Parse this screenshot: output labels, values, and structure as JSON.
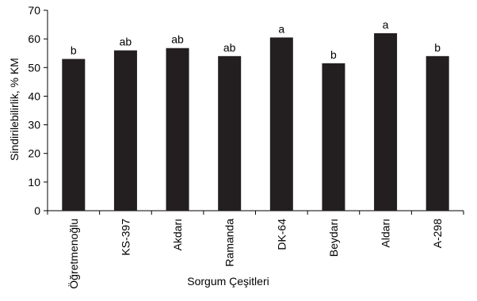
{
  "chart_data": {
    "type": "bar",
    "title": "",
    "xlabel": "Sorgum Çeşitleri",
    "ylabel": "Sindirilebilirlik, % KM",
    "ylim": [
      0,
      70
    ],
    "yticks": [
      0,
      10,
      20,
      30,
      40,
      50,
      60,
      70
    ],
    "categories": [
      "Öğretmenoğlu",
      "KS-397",
      "Akdarı",
      "Ramanda",
      "DK-64",
      "Beydarı",
      "Aldarı",
      "A-298"
    ],
    "values": [
      53,
      56,
      56.8,
      54,
      60.5,
      51.5,
      62,
      54
    ],
    "bar_labels": [
      "b",
      "ab",
      "ab",
      "ab",
      "a",
      "b",
      "a",
      "b"
    ],
    "bar_color": "#231f20",
    "grid": false,
    "legend": "none"
  }
}
